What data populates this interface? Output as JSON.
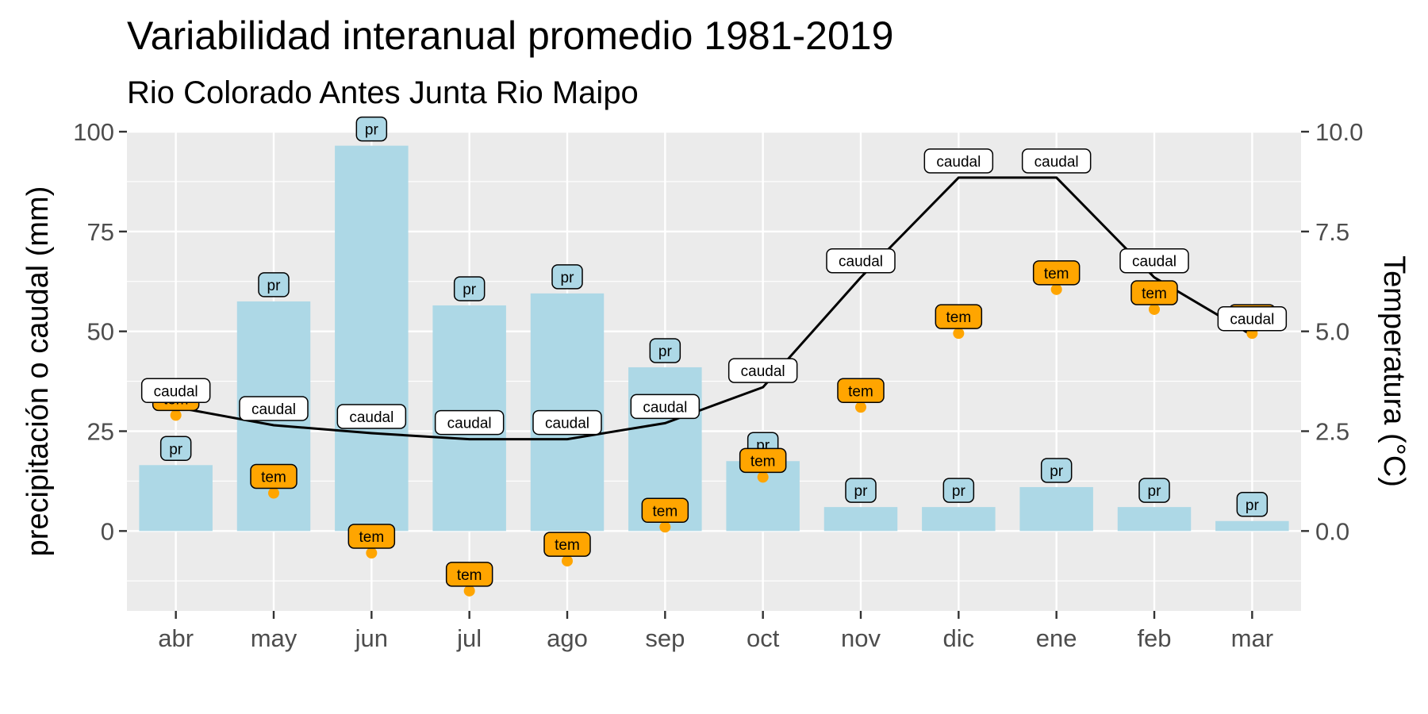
{
  "chart_data": {
    "type": "bar",
    "title": "Variabilidad interanual promedio 1981-2019",
    "subtitle": "Rio Colorado Antes Junta Rio Maipo",
    "ylabel": "precipitación o caudal (mm)",
    "y2label": "Temperatura (°C)",
    "categories": [
      "abr",
      "may",
      "jun",
      "jul",
      "ago",
      "sep",
      "oct",
      "nov",
      "dic",
      "ene",
      "feb",
      "mar"
    ],
    "ylim": [
      -20,
      100
    ],
    "yticks": [
      0,
      25,
      50,
      75,
      100
    ],
    "y2lim": [
      -2,
      10
    ],
    "y2ticks": [
      "0.0",
      "2.5",
      "5.0",
      "7.5",
      "10.0"
    ],
    "grid": true,
    "series": [
      {
        "name": "pr",
        "type": "bar",
        "color": "#add8e6",
        "values": [
          16.5,
          57.5,
          96.5,
          56.5,
          59.5,
          41,
          17.5,
          6,
          6,
          11,
          6,
          2.5
        ]
      },
      {
        "name": "caudal",
        "type": "line",
        "color": "#000000",
        "values": [
          31,
          26.5,
          24.5,
          23,
          23,
          27,
          36,
          63.5,
          88.5,
          88.5,
          63.5,
          49
        ]
      },
      {
        "name": "tem",
        "type": "point",
        "axis": "secondary",
        "color": "#ffa500",
        "values": [
          2.9,
          0.95,
          -0.55,
          -1.5,
          -0.75,
          0.1,
          1.35,
          3.1,
          4.95,
          6.05,
          5.55,
          4.95
        ]
      }
    ]
  }
}
